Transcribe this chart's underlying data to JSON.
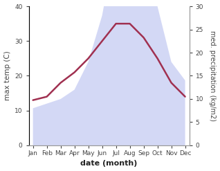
{
  "months": [
    "Jan",
    "Feb",
    "Mar",
    "Apr",
    "May",
    "Jun",
    "Jul",
    "Aug",
    "Sep",
    "Oct",
    "Nov",
    "Dec"
  ],
  "temp": [
    13,
    14,
    18,
    21,
    25,
    30,
    35,
    35,
    31,
    25,
    18,
    14
  ],
  "precip": [
    8,
    9,
    10,
    12,
    18,
    28,
    44,
    41,
    41,
    30,
    18,
    14
  ],
  "temp_color": "#a03050",
  "precip_color": "#b0b8ee",
  "left_ylim": [
    0,
    40
  ],
  "right_ylim": [
    0,
    30
  ],
  "left_yticks": [
    0,
    10,
    20,
    30,
    40
  ],
  "right_yticks": [
    0,
    5,
    10,
    15,
    20,
    25,
    30
  ],
  "xlabel": "date (month)",
  "ylabel_left": "max temp (C)",
  "ylabel_right": "med. precipitation (kg/m2)",
  "temp_lw": 1.8,
  "precip_alpha": 0.55
}
